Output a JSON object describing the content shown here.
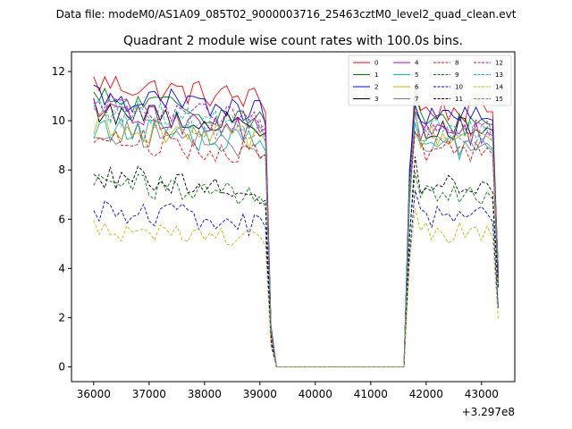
{
  "chart_data": {
    "type": "line",
    "suptitle": "Data file: modeM0/AS1A09_085T02_9000003716_25463cztM0_level2_quad_clean.evt",
    "title": "Quadrant 2 module wise count rates with 100.0s bins.",
    "xlabel": "",
    "ylabel": "",
    "x_offset_label": "+3.297e8",
    "xlim": [
      35600,
      43600
    ],
    "ylim": [
      -0.6,
      12.8
    ],
    "xticks": [
      36000,
      37000,
      38000,
      39000,
      40000,
      41000,
      42000,
      43000
    ],
    "xtick_labels": [
      "36000",
      "37000",
      "38000",
      "39000",
      "40000",
      "41000",
      "42000",
      "43000"
    ],
    "yticks": [
      0,
      2,
      4,
      6,
      8,
      10,
      12
    ],
    "ytick_labels": [
      "0",
      "2",
      "4",
      "6",
      "8",
      "10",
      "12"
    ],
    "legend_position": "top-right",
    "segments": [
      {
        "x_start": 36000,
        "x_end": 39100,
        "step": 100
      },
      {
        "x_start": 41700,
        "x_end": 43300,
        "step": 100
      }
    ],
    "gap": {
      "x": [
        39200,
        39300,
        41600
      ],
      "value": 0
    },
    "series": [
      {
        "name": "0",
        "color": "#ff0000",
        "style": "solid",
        "level_a": 11.2,
        "level_b": 10.4
      },
      {
        "name": "1",
        "color": "#008000",
        "style": "solid",
        "level_a": 10.5,
        "level_b": 9.9
      },
      {
        "name": "2",
        "color": "#0000ff",
        "style": "solid",
        "level_a": 10.7,
        "level_b": 10.1
      },
      {
        "name": "3",
        "color": "#000000",
        "style": "solid",
        "level_a": 10.1,
        "level_b": 9.7
      },
      {
        "name": "4",
        "color": "#bf00bf",
        "style": "solid",
        "level_a": 10.0,
        "level_b": 9.5
      },
      {
        "name": "5",
        "color": "#00bfbf",
        "style": "solid",
        "level_a": 9.4,
        "level_b": 8.9
      },
      {
        "name": "6",
        "color": "#bfbf00",
        "style": "solid",
        "level_a": 9.5,
        "level_b": 9.3
      },
      {
        "name": "7",
        "color": "#808080",
        "style": "solid",
        "level_a": 9.3,
        "level_b": 9.0
      },
      {
        "name": "8",
        "color": "#ff0000",
        "style": "dashed",
        "level_a": 9.0,
        "level_b": 8.8
      },
      {
        "name": "9",
        "color": "#008000",
        "style": "dashed",
        "level_a": 7.2,
        "level_b": 7.0
      },
      {
        "name": "10",
        "color": "#0000ff",
        "style": "dashed",
        "level_a": 6.1,
        "level_b": 6.1
      },
      {
        "name": "11",
        "color": "#000000",
        "style": "dashed",
        "level_a": 7.5,
        "level_b": 7.3
      },
      {
        "name": "12",
        "color": "#bf00bf",
        "style": "dashed",
        "level_a": 10.3,
        "level_b": 9.8
      },
      {
        "name": "13",
        "color": "#00bfbf",
        "style": "dashed",
        "level_a": 10.1,
        "level_b": 9.6
      },
      {
        "name": "14",
        "color": "#bfbf00",
        "style": "dashed",
        "level_a": 5.4,
        "level_b": 5.5
      },
      {
        "name": "15",
        "color": "#808080",
        "style": "dashed",
        "level_a": 9.9,
        "level_b": 9.4
      }
    ]
  }
}
